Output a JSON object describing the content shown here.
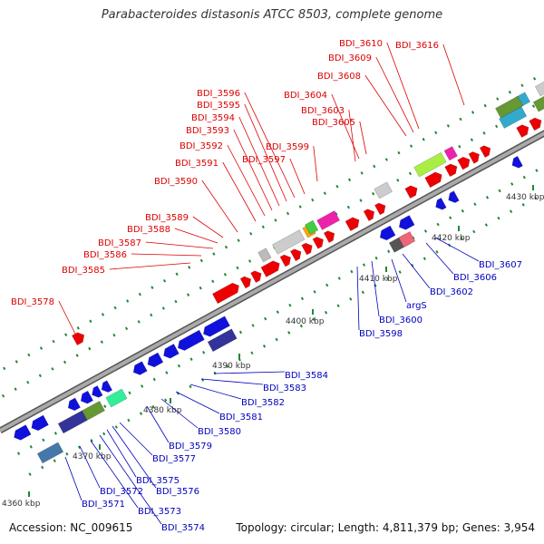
{
  "title": "Parabacteroides distasonis ATCC 8503, complete genome",
  "footer": {
    "accession": "Accession: NC_009615",
    "info": "Topology: circular; Length: 4,811,379 bp; Genes: 3,954"
  },
  "colors": {
    "forward": "#ee0000",
    "reverse": "#1111dd",
    "label_forward": "#dd0000",
    "label_reverse": "#0000bb",
    "backbone": "#aaaaaa",
    "tick": "#228833"
  },
  "scale": [
    {
      "label": "4360 kbp",
      "kbp": 4360
    },
    {
      "label": "4370 kbp",
      "kbp": 4370
    },
    {
      "label": "4380 kbp",
      "kbp": 4380
    },
    {
      "label": "4390 kbp",
      "kbp": 4390
    },
    {
      "label": "4400 kbp",
      "kbp": 4400
    },
    {
      "label": "4410 kbp",
      "kbp": 4410
    },
    {
      "label": "4420 kbp",
      "kbp": 4420
    },
    {
      "label": "4430 kbp",
      "kbp": 4430
    }
  ],
  "forward_labels": [
    "BDI_3578",
    "BDI_3585",
    "BDI_3586",
    "BDI_3587",
    "BDI_3588",
    "BDI_3589",
    "BDI_3590",
    "BDI_3591",
    "BDI_3592",
    "BDI_3593",
    "BDI_3594",
    "BDI_3595",
    "BDI_3596",
    "BDI_3597",
    "BDI_3599",
    "BDI_3603",
    "BDI_3604",
    "BDI_3605",
    "BDI_3608",
    "BDI_3609",
    "BDI_3610",
    "BDI_3616"
  ],
  "reverse_labels": [
    "BDI_3571",
    "BDI_3572",
    "BDI_3573",
    "BDI_3574",
    "BDI_3575",
    "BDI_3576",
    "BDI_3577",
    "BDI_3579",
    "BDI_3580",
    "BDI_3581",
    "BDI_3582",
    "BDI_3583",
    "BDI_3584",
    "BDI_3598",
    "BDI_3600",
    "argS",
    "BDI_3602",
    "BDI_3606",
    "BDI_3607"
  ]
}
